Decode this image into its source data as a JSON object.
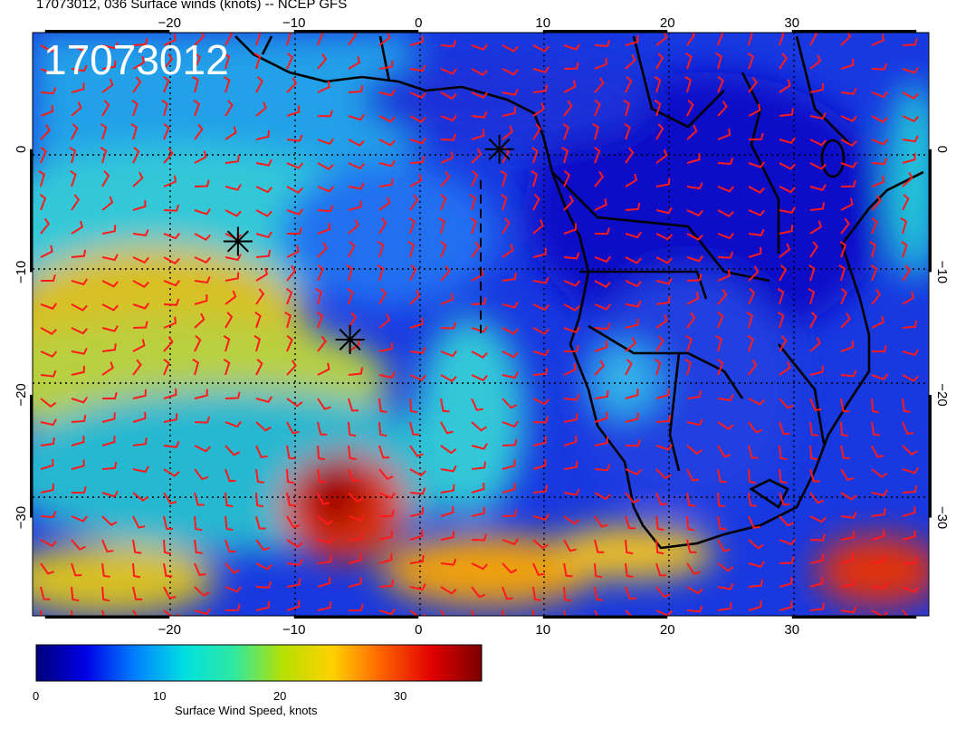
{
  "title": "17073012, 036 Surface winds (knots) -- NCEP GFS",
  "stamp": "17073012",
  "map": {
    "lon_range": [
      -31,
      41
    ],
    "lat_range": [
      -38,
      9.5
    ],
    "lon_ticks": [
      "-20",
      "-10",
      "0",
      "10",
      "20",
      "30"
    ],
    "lat_ticks": [
      "0",
      "-10",
      "-20",
      "-30"
    ],
    "gridlines": "dotted"
  },
  "markers": [
    {
      "name": "storm-center-1",
      "lon": -14.5,
      "lat": -7.5
    },
    {
      "name": "storm-center-2",
      "lon": -5.5,
      "lat": -15.5
    },
    {
      "name": "storm-center-3",
      "lon": 6.5,
      "lat": 0
    }
  ],
  "dashed_track": {
    "lon": 5,
    "lat": [
      -2.5,
      -15
    ]
  },
  "colorbar": {
    "title": "Surface Wind Speed, knots",
    "labels": [
      "0",
      "10",
      "20",
      "30"
    ],
    "values": [
      0,
      10,
      20,
      30
    ],
    "range": [
      0,
      37
    ],
    "colors": [
      "#00007a",
      "#0000e6",
      "#0080ff",
      "#00e0e0",
      "#30e8a0",
      "#b8e000",
      "#ffd000",
      "#ff6000",
      "#e00000",
      "#7a0000"
    ]
  },
  "colors": {
    "barb": "#ff1a1a",
    "coast": "#000000",
    "ocean_low": "#1428d8",
    "ocean_high": "#e0c010"
  }
}
